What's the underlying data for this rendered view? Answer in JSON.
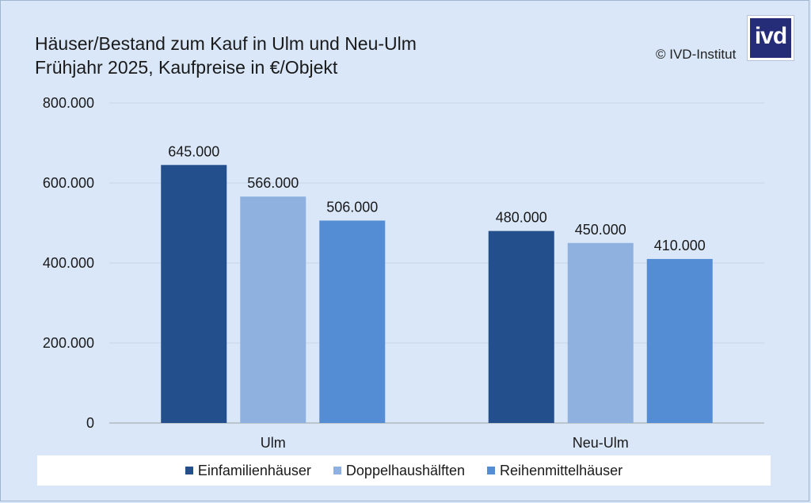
{
  "title_line1": "Häuser/Bestand zum Kauf in Ulm und Neu-Ulm",
  "title_line2": "Frühjahr 2025, Kaufpreise in €/Objekt",
  "copyright": "© IVD-Institut",
  "logo_text": "ivd",
  "chart_data": {
    "type": "bar",
    "categories": [
      "Ulm",
      "Neu-Ulm"
    ],
    "series": [
      {
        "name": "Einfamilienhäuser",
        "values": [
          645000,
          480000
        ],
        "labels": [
          "645.000",
          "480.000"
        ],
        "color": "#234f8c"
      },
      {
        "name": "Doppelhaushälften",
        "values": [
          566000,
          450000
        ],
        "labels": [
          "566.000",
          "450.000"
        ],
        "color": "#8fb1e0"
      },
      {
        "name": "Reihenmittelhäuser",
        "values": [
          506000,
          410000
        ],
        "labels": [
          "506.000",
          "410.000"
        ],
        "color": "#548dd4"
      }
    ],
    "ylim": [
      0,
      800000
    ],
    "yticks": [
      0,
      200000,
      400000,
      600000,
      800000
    ],
    "ytick_labels": [
      "0",
      "200.000",
      "400.000",
      "600.000",
      "800.000"
    ],
    "grid": true,
    "legend": "bottom"
  }
}
